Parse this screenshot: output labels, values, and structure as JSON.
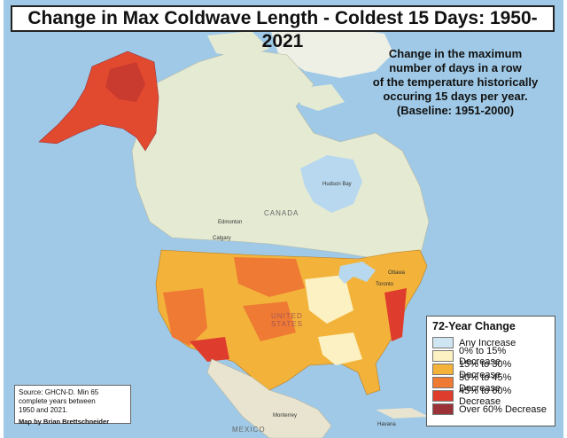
{
  "title": "Change in Max Coldwave Length - Coldest 15 Days: 1950-2021",
  "subtitle_lines": [
    "Change in the maximum",
    "number of days in a row",
    "of the temperature historically",
    "occuring 15 days per year.",
    "(Baseline: 1951-2000)"
  ],
  "legend": {
    "title": "72-Year Change",
    "items": [
      {
        "label": "Any Increase",
        "color": "#cfe6f2"
      },
      {
        "label": "0% to 15% Decrease",
        "color": "#fbf1c2"
      },
      {
        "label": "15% to 30% Decrease",
        "color": "#f3b33a"
      },
      {
        "label": "30% to 45% Decrease",
        "color": "#ee7a34"
      },
      {
        "label": "45% to 60% Decrease",
        "color": "#de3d2e"
      },
      {
        "label": "Over 60% Decrease",
        "color": "#9a3238"
      }
    ]
  },
  "source": {
    "text_lines": [
      "Source: GHCN-D. Min 65",
      "complete years between",
      "1950 and 2021."
    ],
    "author": "Map by Brian Brettschneider"
  },
  "labels": {
    "canada": "CANADA",
    "united_states_1": "UNITED",
    "united_states_2": "STATES",
    "mexico": "MEXICO",
    "hudson_bay": "Hudson Bay",
    "edmonton": "Edmonton",
    "calgary": "Calgary",
    "ottawa": "Ottawa",
    "toronto": "Toronto",
    "havana": "Havana",
    "monterrey": "Monterrey"
  },
  "colors": {
    "ocean": "#9fc9e6",
    "land_north": "#e5ead3",
    "land_other": "#e8e4cf",
    "water_lake": "#b7d8ee"
  }
}
